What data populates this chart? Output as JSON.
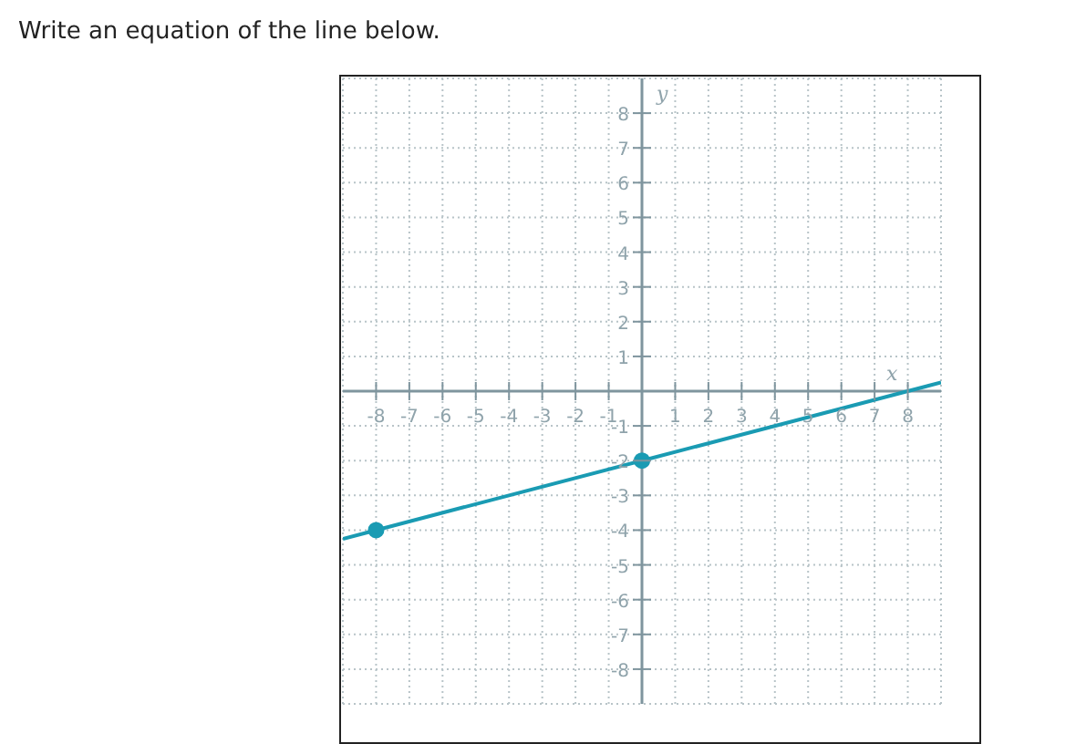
{
  "chart_data": {
    "type": "line",
    "title": "Write an equation of the line below.",
    "xlabel": "x",
    "ylabel": "y",
    "xlim": [
      -9,
      9
    ],
    "ylim": [
      -9,
      9
    ],
    "xticks": [
      -8,
      -7,
      -6,
      -5,
      -4,
      -3,
      -2,
      -1,
      1,
      2,
      3,
      4,
      5,
      6,
      7,
      8
    ],
    "yticks": [
      -8,
      -7,
      -6,
      -5,
      -4,
      -3,
      -2,
      -1,
      1,
      2,
      3,
      4,
      5,
      6,
      7,
      8
    ],
    "grid": true,
    "legend": false,
    "series": [
      {
        "x": [
          -9,
          -8,
          0,
          9
        ],
        "values": [
          -4.25,
          -4,
          -2,
          0.25
        ],
        "color": "#1a9bb3",
        "marker": "none"
      },
      {
        "type": "scatter",
        "x": [
          -8,
          0
        ],
        "values": [
          -4,
          -2
        ],
        "color": "#1a9bb3",
        "marker": "circle"
      }
    ]
  }
}
